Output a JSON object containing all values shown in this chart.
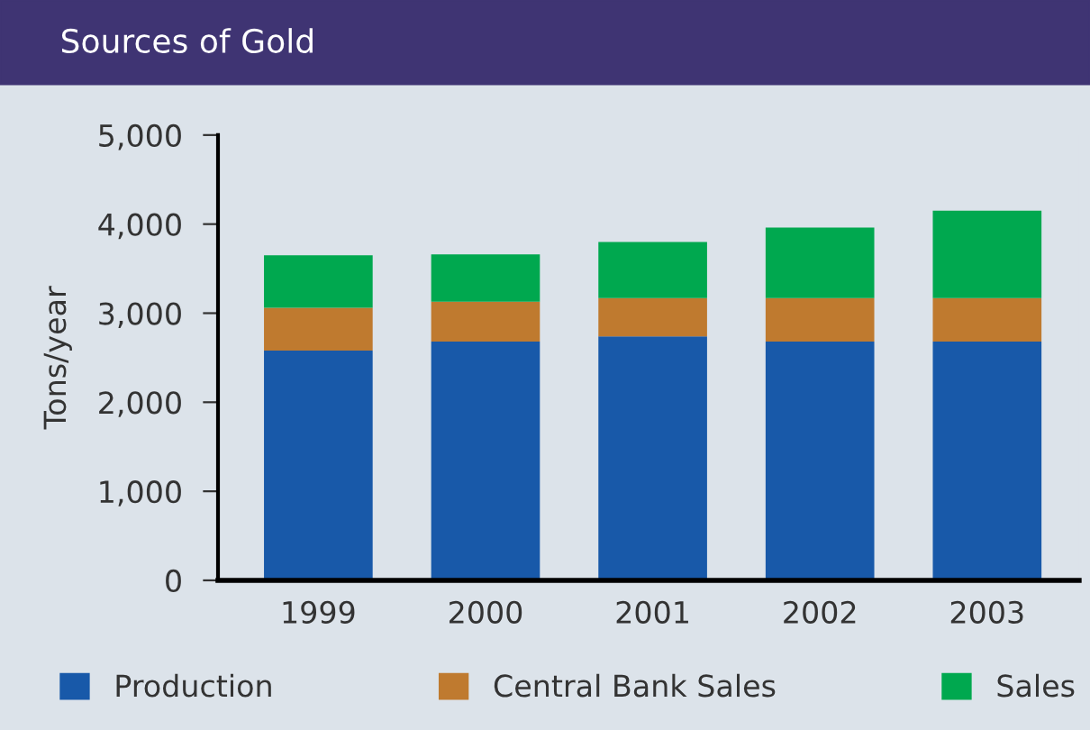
{
  "chart_data": {
    "type": "bar",
    "title": "Sources of Gold",
    "ylabel": "Tons/year",
    "stacked": true,
    "categories": [
      "1999",
      "2000",
      "2001",
      "2002",
      "2003"
    ],
    "series": [
      {
        "name": "Production",
        "color": "#1859a9",
        "values": [
          2580,
          2680,
          2740,
          2680,
          2680
        ]
      },
      {
        "name": "Central Bank Sales",
        "color": "#bf7a2f",
        "values": [
          480,
          450,
          430,
          490,
          490
        ]
      },
      {
        "name": "Sales",
        "color": "#00a84f",
        "values": [
          590,
          530,
          630,
          790,
          980
        ]
      }
    ],
    "ylim": [
      0,
      5000
    ],
    "yticks": [
      {
        "value": 0,
        "label": "0"
      },
      {
        "value": 1000,
        "label": "1,000"
      },
      {
        "value": 2000,
        "label": "2,000"
      },
      {
        "value": 3000,
        "label": "3,000"
      },
      {
        "value": 4000,
        "label": "4,000"
      },
      {
        "value": 5000,
        "label": "5,000"
      }
    ],
    "grid": false,
    "legend": "bottom"
  }
}
